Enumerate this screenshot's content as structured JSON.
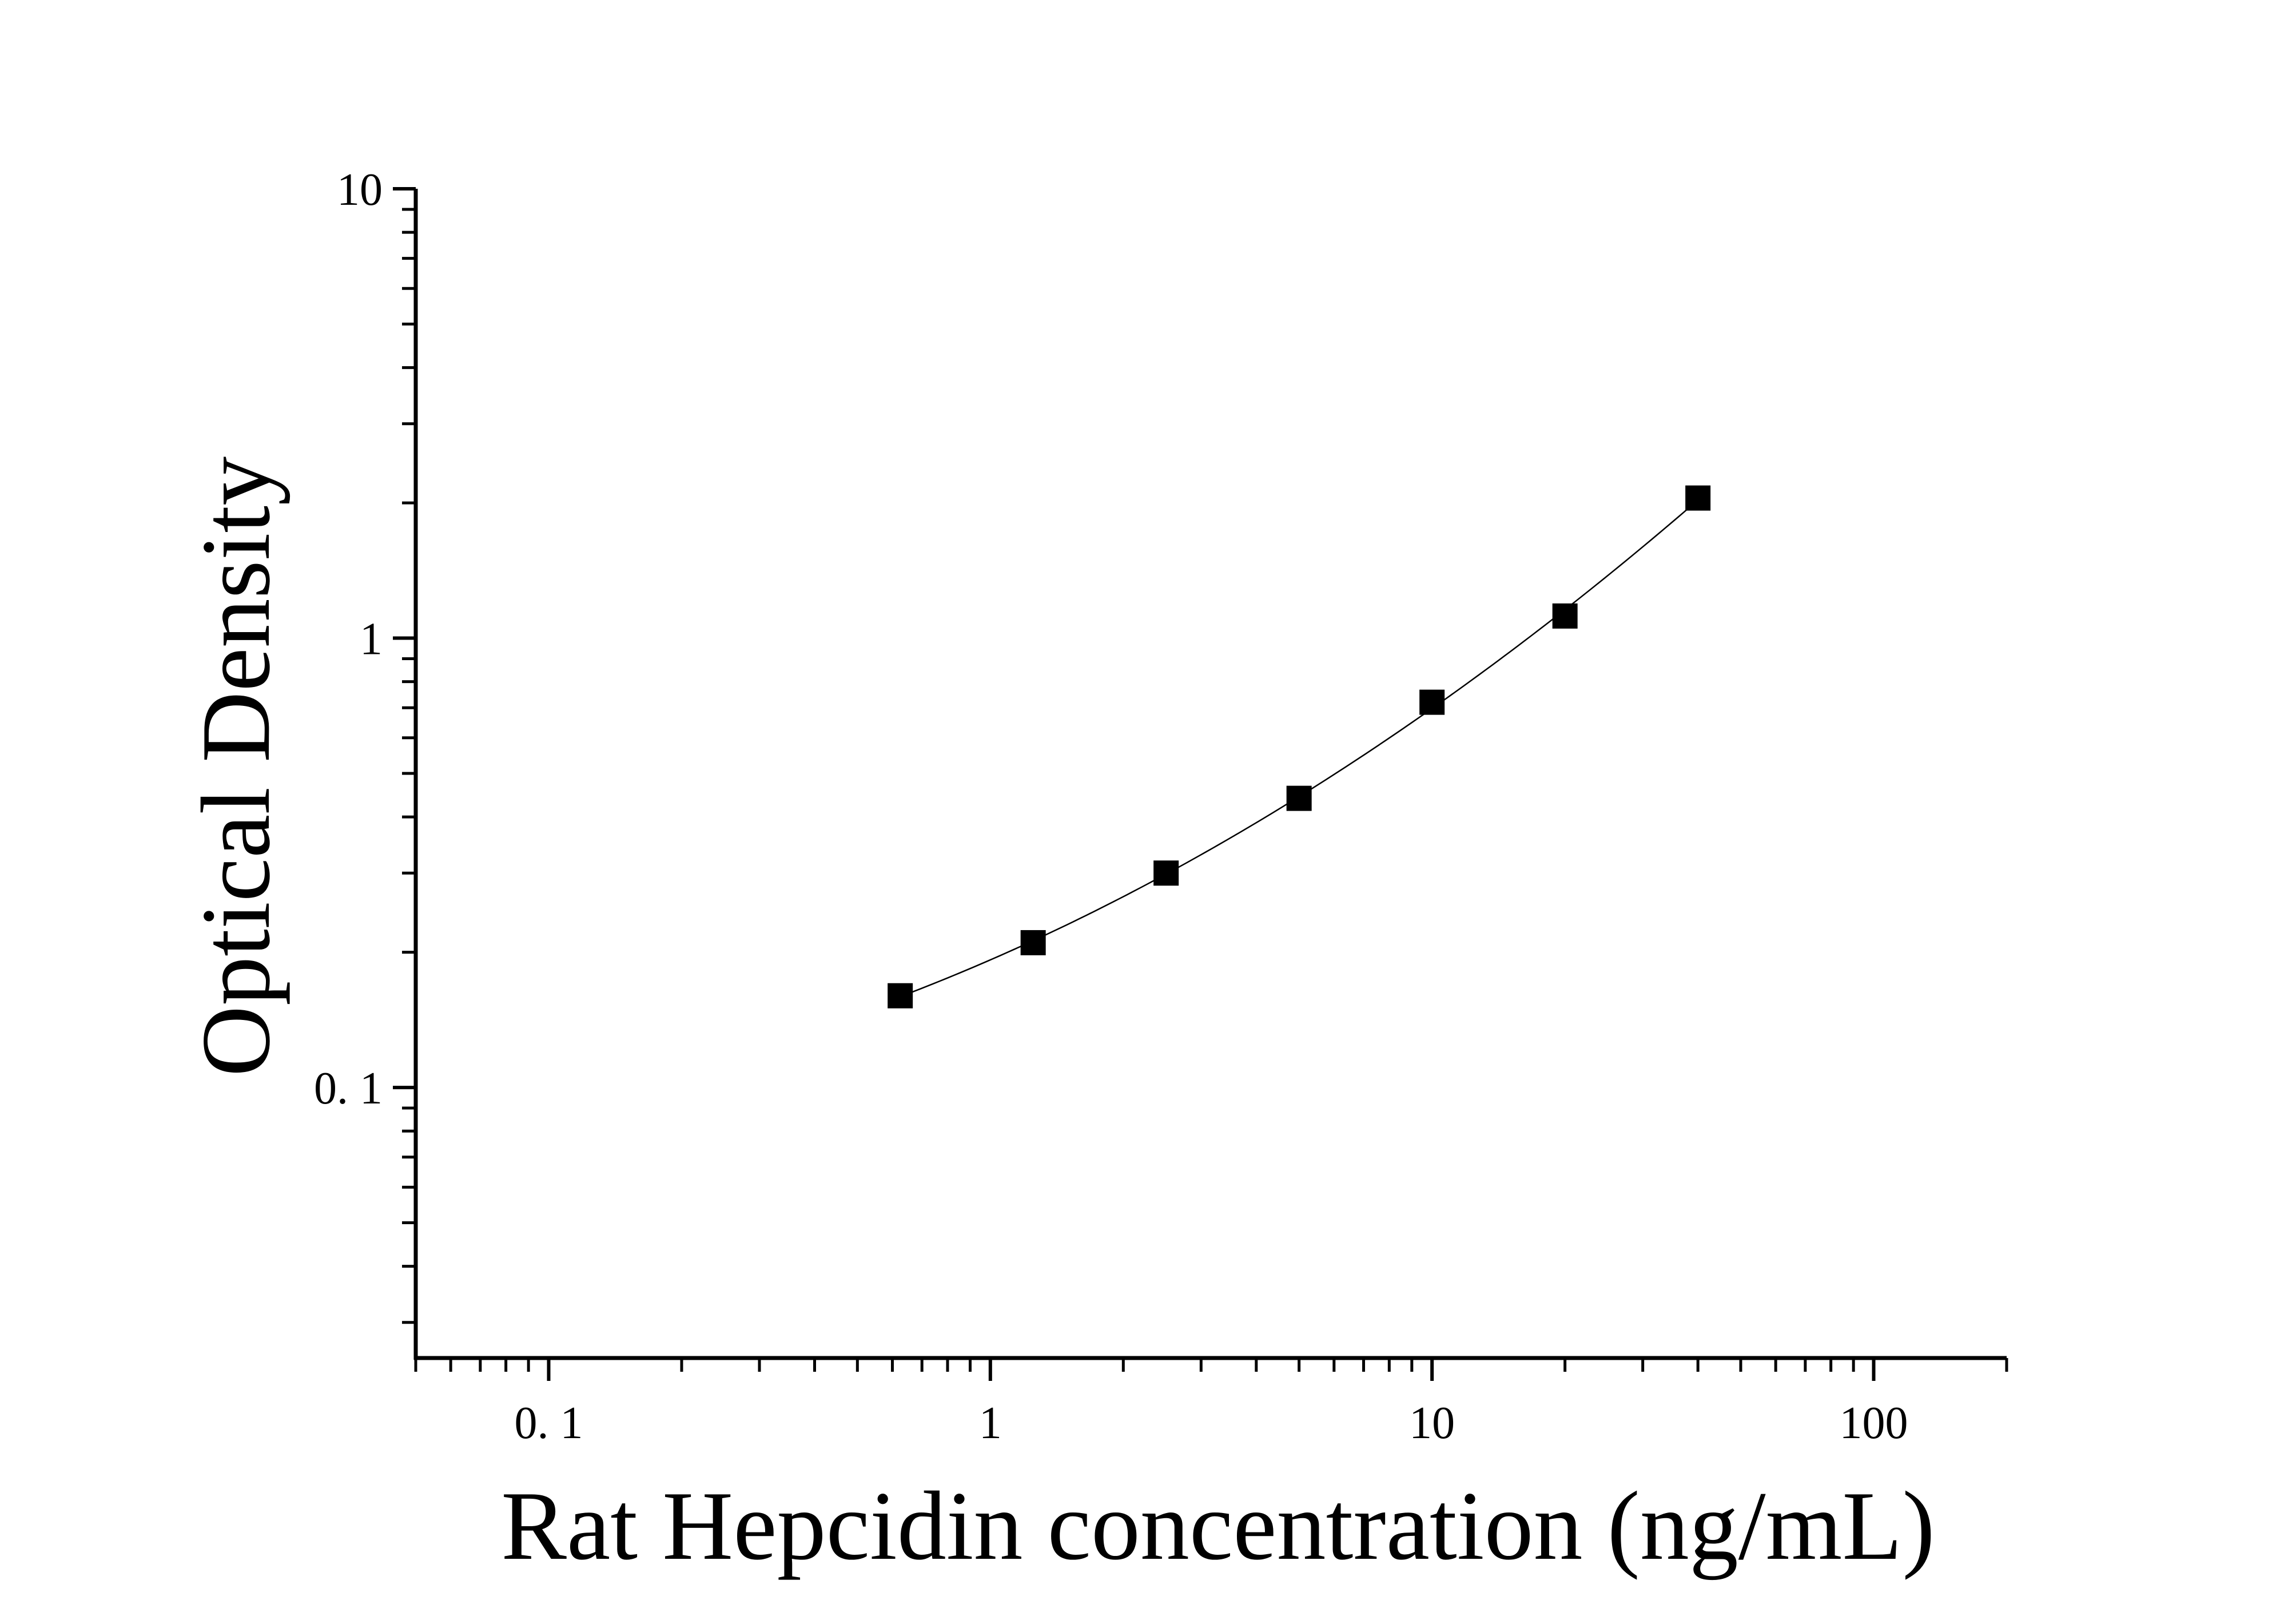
{
  "chart_data": {
    "type": "scatter",
    "xlabel": "Rat Hepcidin concentration (ng/mL)",
    "ylabel": "Optical Density",
    "xscale": "log",
    "yscale": "log",
    "xlim": [
      0.05,
      200
    ],
    "ylim": [
      0.025,
      10
    ],
    "x_ticks": [
      {
        "value": 0.1,
        "label": "0. 1"
      },
      {
        "value": 1,
        "label": "1"
      },
      {
        "value": 10,
        "label": "10"
      },
      {
        "value": 100,
        "label": "100"
      }
    ],
    "y_ticks": [
      {
        "value": 0.1,
        "label": "0. 1"
      },
      {
        "value": 1,
        "label": "1"
      },
      {
        "value": 10,
        "label": "10"
      }
    ],
    "grid": false,
    "marker": "square",
    "points": [
      {
        "x": 0.625,
        "y": 0.16
      },
      {
        "x": 1.25,
        "y": 0.21
      },
      {
        "x": 2.5,
        "y": 0.3
      },
      {
        "x": 5,
        "y": 0.44
      },
      {
        "x": 10,
        "y": 0.72
      },
      {
        "x": 20,
        "y": 1.12
      },
      {
        "x": 40,
        "y": 2.05
      }
    ],
    "fit_curve": true,
    "colors": {
      "marker": "#000000",
      "axis": "#000000",
      "curve": "#000000"
    }
  }
}
